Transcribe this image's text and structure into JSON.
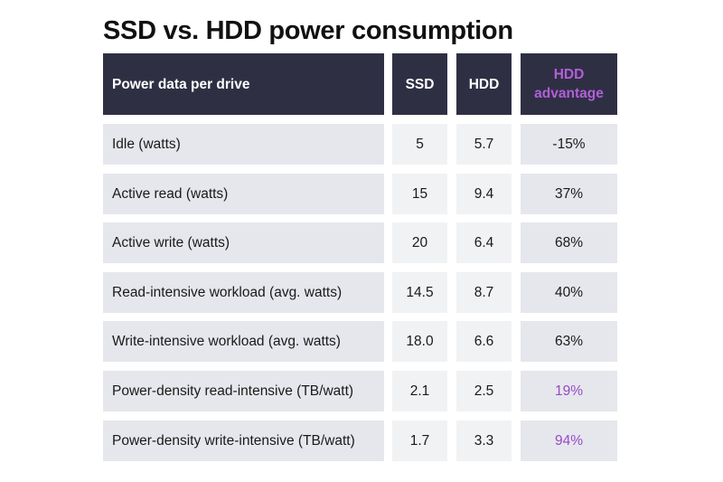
{
  "title": "SSD vs. HDD power consumption",
  "colors": {
    "header_bg": "#2f2f44",
    "header_text": "#ffffff",
    "accent_purple": "#b25fd8",
    "row_bg_dark": "#e5e7ec",
    "row_bg_light": "#f1f2f4"
  },
  "chart_data": {
    "type": "table",
    "title": "SSD vs. HDD power consumption",
    "columns": [
      "Power data per drive",
      "SSD",
      "HDD",
      "HDD advantage"
    ],
    "rows": [
      {
        "label": "Idle (watts)",
        "ssd": "5",
        "hdd": "5.7",
        "advantage": "-15%",
        "highlight": false
      },
      {
        "label": "Active read (watts)",
        "ssd": "15",
        "hdd": "9.4",
        "advantage": "37%",
        "highlight": false
      },
      {
        "label": "Active write (watts)",
        "ssd": "20",
        "hdd": "6.4",
        "advantage": "68%",
        "highlight": false
      },
      {
        "label": "Read-intensive workload (avg. watts)",
        "ssd": "14.5",
        "hdd": "8.7",
        "advantage": "40%",
        "highlight": false
      },
      {
        "label": "Write-intensive workload (avg. watts)",
        "ssd": "18.0",
        "hdd": "6.6",
        "advantage": "63%",
        "highlight": false
      },
      {
        "label": "Power-density read-intensive (TB/watt)",
        "ssd": "2.1",
        "hdd": "2.5",
        "advantage": "19%",
        "highlight": true
      },
      {
        "label": "Power-density write-intensive (TB/watt)",
        "ssd": "1.7",
        "hdd": "3.3",
        "advantage": "94%",
        "highlight": true
      }
    ]
  }
}
